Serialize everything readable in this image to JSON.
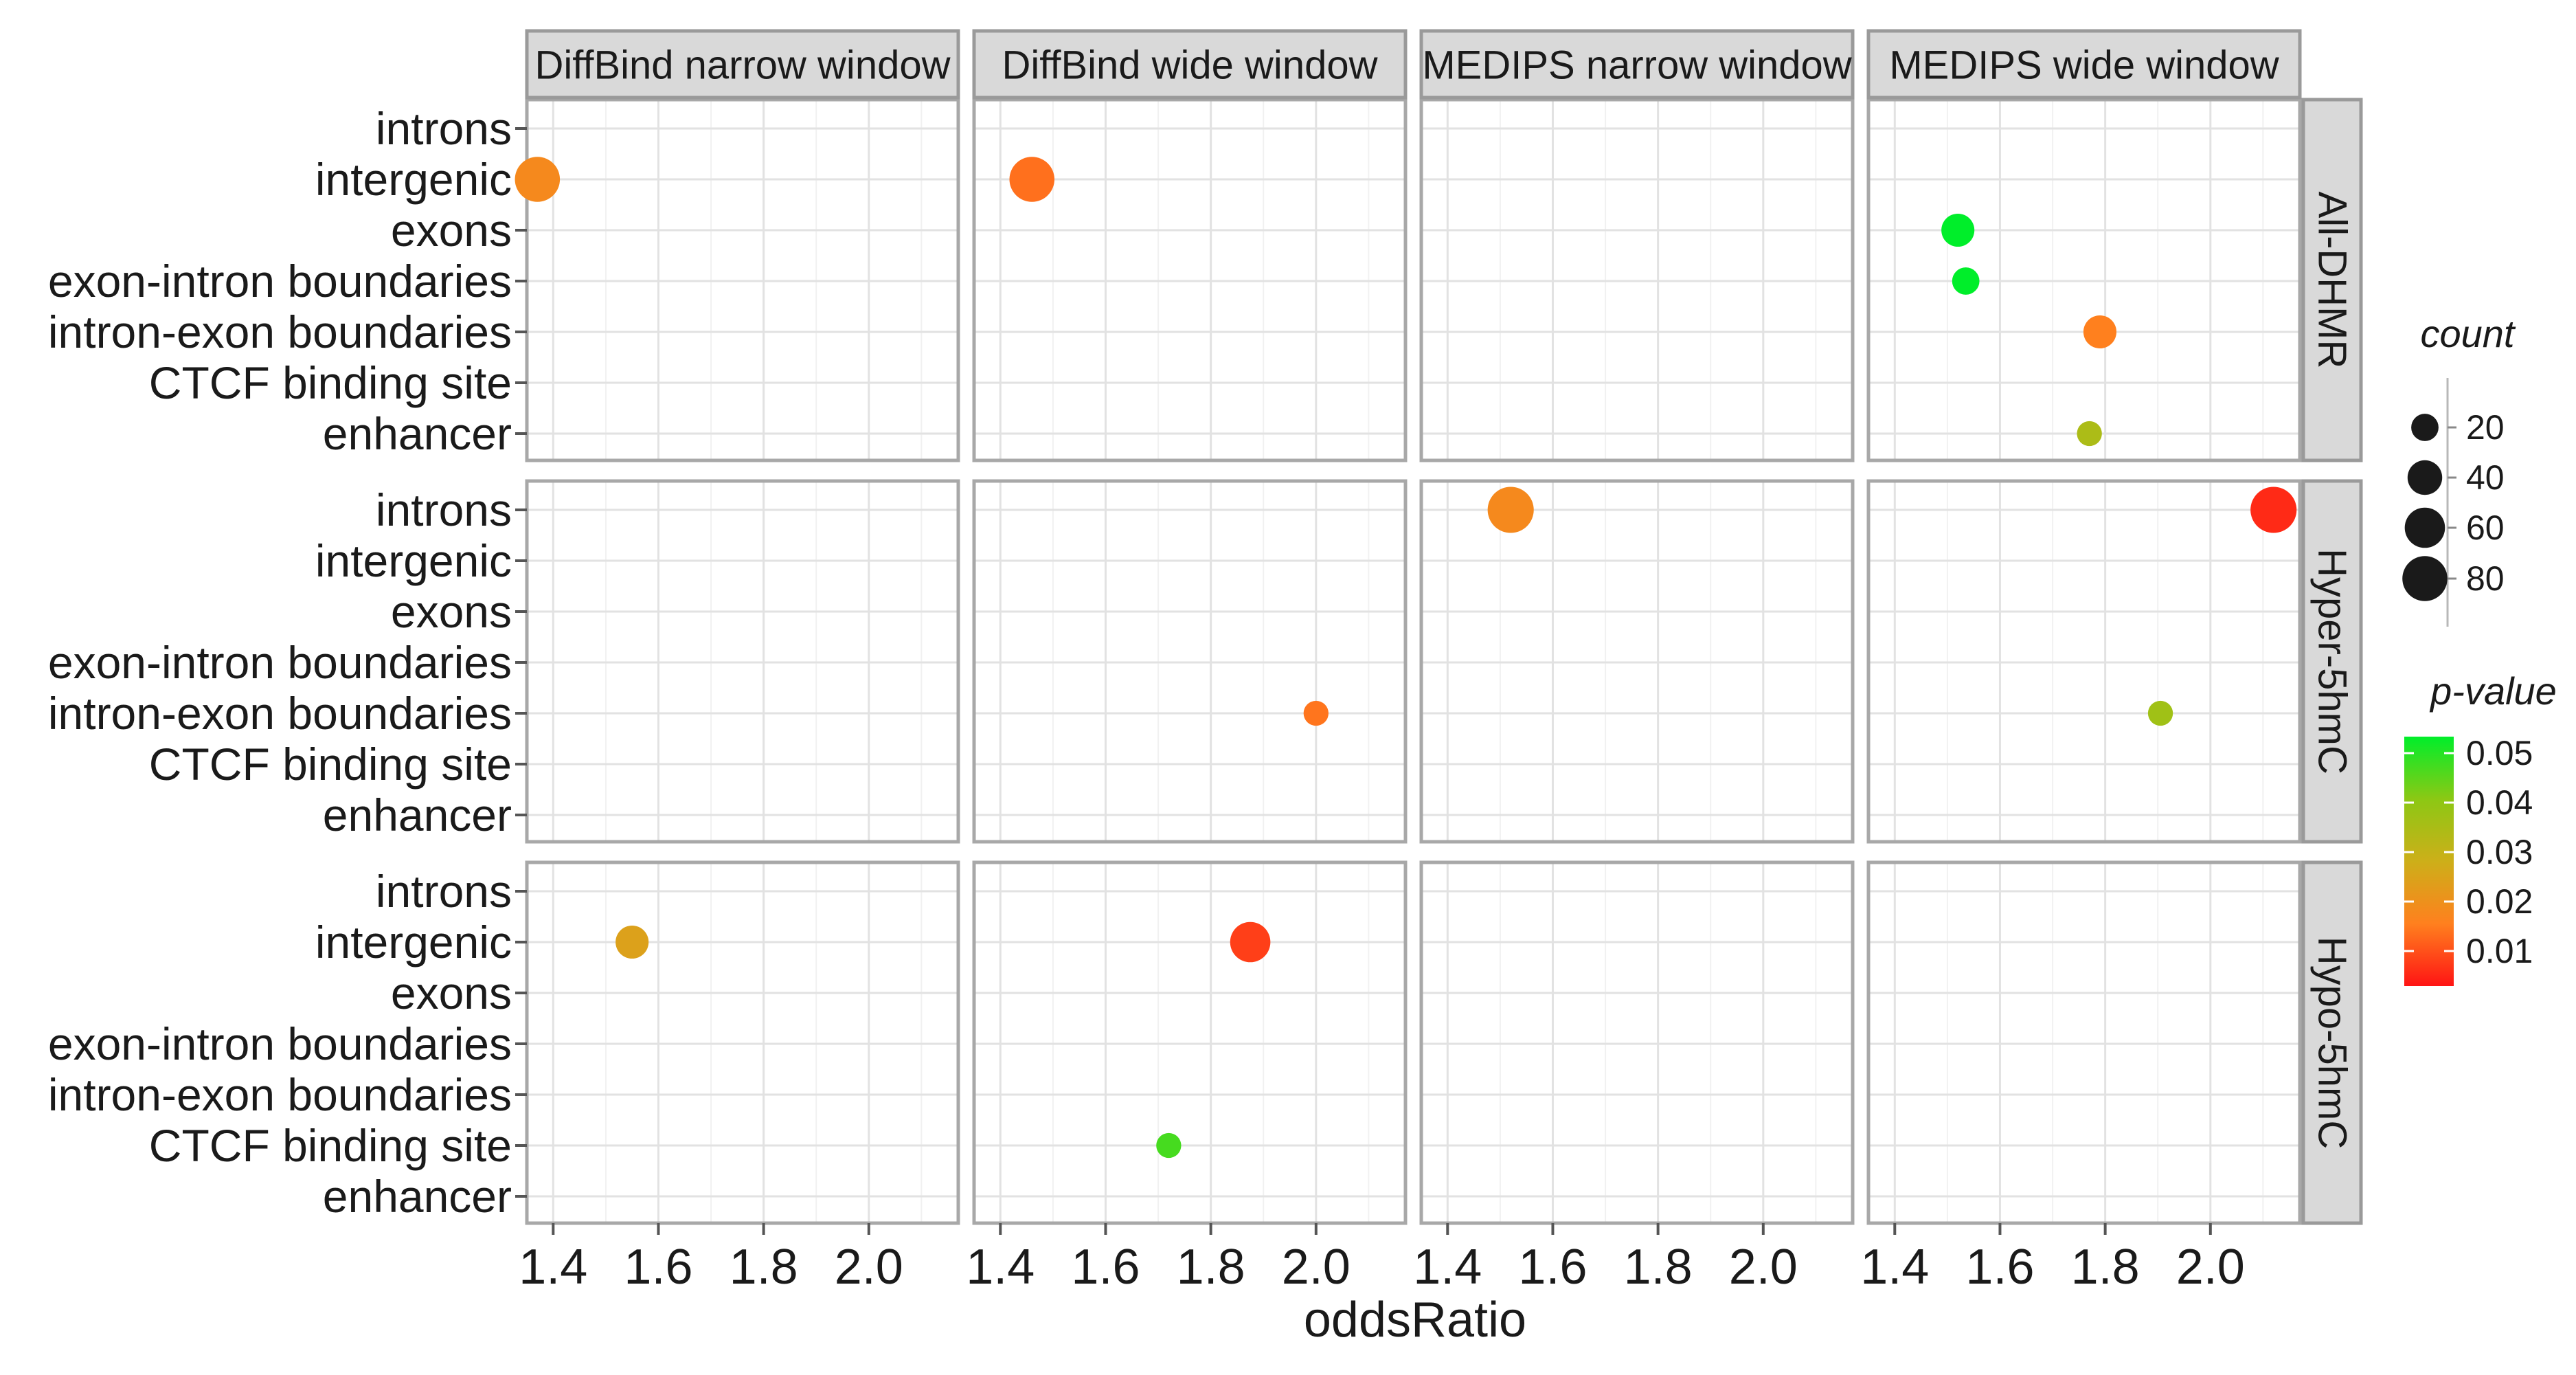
{
  "chart_data": {
    "type": "scatter",
    "xlabel": "oddsRatio",
    "x_ticks": [
      1.4,
      1.6,
      1.8,
      2.0
    ],
    "x_tick_labels": [
      "1.4",
      "1.6",
      "1.8",
      "2.0"
    ],
    "xlim": [
      1.35,
      2.17
    ],
    "column_panels": [
      "DiffBind narrow window",
      "DiffBind wide window",
      "MEDIPS narrow window",
      "MEDIPS wide window"
    ],
    "row_panels": [
      "All-DHMR",
      "Hyper-5hmC",
      "Hypo-5hmC"
    ],
    "y_categories": [
      "introns",
      "intergenic",
      "exons",
      "exon-intron boundaries",
      "intron-exon boundaries",
      "CTCF binding site",
      "enhancer"
    ],
    "grid": true,
    "legend": {
      "placement": "right",
      "size_title": "count",
      "size_breaks": [
        20,
        40,
        60,
        80
      ],
      "size_labels": [
        "20",
        "40",
        "60",
        "80"
      ],
      "color_title": "p-value",
      "color_breaks": [
        0.05,
        0.04,
        0.03,
        0.02,
        0.01
      ],
      "color_labels": [
        "0.05",
        "0.04",
        "0.03",
        "0.02",
        "0.01"
      ],
      "color_low": "#ff1a1a",
      "color_high": "#00ee2a"
    },
    "points": [
      {
        "col": "DiffBind narrow window",
        "row": "All-DHMR",
        "category": "intergenic",
        "x": 1.37,
        "count": 80,
        "p": 0.022
      },
      {
        "col": "DiffBind wide window",
        "row": "All-DHMR",
        "category": "intergenic",
        "x": 1.46,
        "count": 80,
        "p": 0.017
      },
      {
        "col": "MEDIPS wide window",
        "row": "All-DHMR",
        "category": "exons",
        "x": 1.52,
        "count": 35,
        "p": 0.05
      },
      {
        "col": "MEDIPS wide window",
        "row": "All-DHMR",
        "category": "exon-intron boundaries",
        "x": 1.535,
        "count": 20,
        "p": 0.05
      },
      {
        "col": "MEDIPS wide window",
        "row": "All-DHMR",
        "category": "intron-exon boundaries",
        "x": 1.79,
        "count": 35,
        "p": 0.02
      },
      {
        "col": "MEDIPS wide window",
        "row": "All-DHMR",
        "category": "enhancer",
        "x": 1.77,
        "count": 15,
        "p": 0.035
      },
      {
        "col": "MEDIPS narrow window",
        "row": "Hyper-5hmC",
        "category": "introns",
        "x": 1.52,
        "count": 85,
        "p": 0.022
      },
      {
        "col": "MEDIPS wide window",
        "row": "Hyper-5hmC",
        "category": "introns",
        "x": 2.12,
        "count": 85,
        "p": 0.004
      },
      {
        "col": "DiffBind wide window",
        "row": "Hyper-5hmC",
        "category": "intron-exon boundaries",
        "x": 2.0,
        "count": 15,
        "p": 0.018
      },
      {
        "col": "MEDIPS wide window",
        "row": "Hyper-5hmC",
        "category": "intron-exon boundaries",
        "x": 1.905,
        "count": 15,
        "p": 0.037
      },
      {
        "col": "DiffBind narrow window",
        "row": "Hypo-5hmC",
        "category": "intergenic",
        "x": 1.55,
        "count": 35,
        "p": 0.027
      },
      {
        "col": "DiffBind wide window",
        "row": "Hypo-5hmC",
        "category": "intergenic",
        "x": 1.875,
        "count": 60,
        "p": 0.008
      },
      {
        "col": "DiffBind wide window",
        "row": "Hypo-5hmC",
        "category": "CTCF binding site",
        "x": 1.72,
        "count": 15,
        "p": 0.045
      }
    ]
  }
}
